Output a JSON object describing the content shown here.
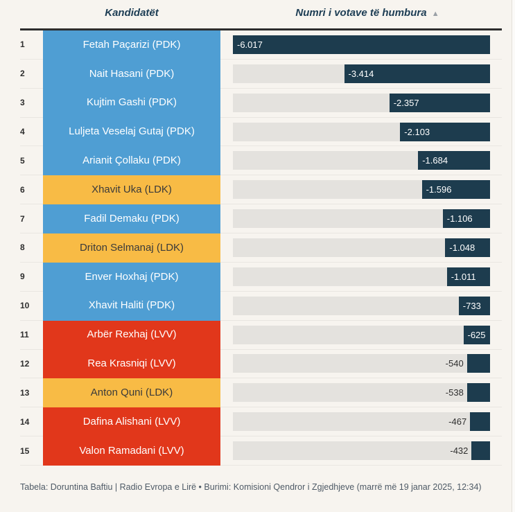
{
  "header": {
    "candidates_label": "Kandidatët",
    "votes_label": "Numri i votave të humbura",
    "sort_icon": "▲"
  },
  "chart_data": {
    "type": "bar",
    "orientation": "horizontal",
    "title": "",
    "xlabel": "Numri i votave të humbura",
    "ylabel": "Kandidatët",
    "xlim": [
      -6017,
      0
    ],
    "max_abs_value": 6017,
    "grid": false,
    "legend_position": "none",
    "categories": [
      "Fetah Paçarizi (PDK)",
      "Nait Hasani (PDK)",
      "Kujtim Gashi (PDK)",
      "Luljeta Veselaj Gutaj (PDK)",
      "Arianit Çollaku (PDK)",
      "Xhavit Uka (LDK)",
      "Fadil Demaku (PDK)",
      "Driton Selmanaj (LDK)",
      "Enver Hoxhaj (PDK)",
      "Xhavit Haliti (PDK)",
      "Arbër Rexhaj (LVV)",
      "Rea Krasniqi (LVV)",
      "Anton Quni (LDK)",
      "Dafina Alishani (LVV)",
      "Valon Ramadani (LVV)"
    ],
    "values": [
      -6017,
      -3414,
      -2357,
      -2103,
      -1684,
      -1596,
      -1106,
      -1048,
      -1011,
      -733,
      -625,
      -540,
      -538,
      -467,
      -432
    ]
  },
  "rows": [
    {
      "rank": "1",
      "name": "Fetah Paçarizi (PDK)",
      "party": "PDK",
      "value": 6017,
      "label": "-6.017",
      "label_inside": true
    },
    {
      "rank": "2",
      "name": "Nait Hasani (PDK)",
      "party": "PDK",
      "value": 3414,
      "label": "-3.414",
      "label_inside": true
    },
    {
      "rank": "3",
      "name": "Kujtim Gashi (PDK)",
      "party": "PDK",
      "value": 2357,
      "label": "-2.357",
      "label_inside": true
    },
    {
      "rank": "4",
      "name": "Luljeta Veselaj Gutaj (PDK)",
      "party": "PDK",
      "value": 2103,
      "label": "-2.103",
      "label_inside": true
    },
    {
      "rank": "5",
      "name": "Arianit Çollaku (PDK)",
      "party": "PDK",
      "value": 1684,
      "label": "-1.684",
      "label_inside": true
    },
    {
      "rank": "6",
      "name": "Xhavit Uka (LDK)",
      "party": "LDK",
      "value": 1596,
      "label": "-1.596",
      "label_inside": true
    },
    {
      "rank": "7",
      "name": "Fadil Demaku (PDK)",
      "party": "PDK",
      "value": 1106,
      "label": "-1.106",
      "label_inside": true
    },
    {
      "rank": "8",
      "name": "Driton Selmanaj (LDK)",
      "party": "LDK",
      "value": 1048,
      "label": "-1.048",
      "label_inside": true
    },
    {
      "rank": "9",
      "name": "Enver Hoxhaj (PDK)",
      "party": "PDK",
      "value": 1011,
      "label": "-1.011",
      "label_inside": true
    },
    {
      "rank": "10",
      "name": "Xhavit Haliti (PDK)",
      "party": "PDK",
      "value": 733,
      "label": "-733",
      "label_inside": true
    },
    {
      "rank": "11",
      "name": "Arbër Rexhaj (LVV)",
      "party": "LVV",
      "value": 625,
      "label": "-625",
      "label_inside": true
    },
    {
      "rank": "12",
      "name": "Rea Krasniqi (LVV)",
      "party": "LVV",
      "value": 540,
      "label": "-540",
      "label_inside": false
    },
    {
      "rank": "13",
      "name": "Anton Quni (LDK)",
      "party": "LDK",
      "value": 538,
      "label": "-538",
      "label_inside": false
    },
    {
      "rank": "14",
      "name": "Dafina Alishani (LVV)",
      "party": "LVV",
      "value": 467,
      "label": "-467",
      "label_inside": false
    },
    {
      "rank": "15",
      "name": "Valon Ramadani (LVV)",
      "party": "LVV",
      "value": 432,
      "label": "-432",
      "label_inside": false
    }
  ],
  "party_colors": {
    "PDK": "#4f9ed3",
    "LDK": "#f8bb45",
    "LVV": "#e1371b"
  },
  "party_text_colors": {
    "PDK": "#ffffff",
    "LDK": "#3a3a3a",
    "LVV": "#ffffff"
  },
  "colors": {
    "background": "#f7f4ef",
    "bar": "#1d3c4e",
    "track": "#e4e2de",
    "header_text": "#1d3d54",
    "rule": "#2d2d2d",
    "footer_text": "#4e5a66"
  },
  "footer": {
    "text": "Tabela: Doruntina Baftiu | Radio Evropa e Lirë • Burimi: Komisioni Qendror i Zgjedhjeve (marrë më 19 janar 2025, 12:34)"
  }
}
